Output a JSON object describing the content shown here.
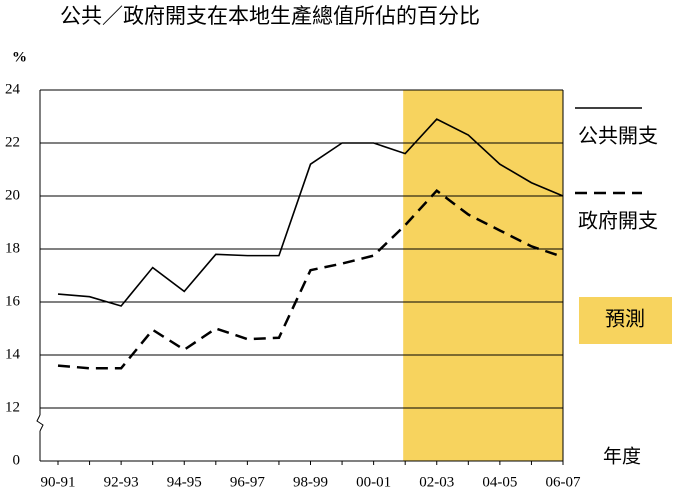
{
  "chart_data": {
    "type": "line",
    "title": "公共／政府開支在本地生產總值所佔的百分比",
    "y_label": "%",
    "x_label": "年度",
    "categories": [
      "90-91",
      null,
      "92-93",
      null,
      "94-95",
      null,
      "96-97",
      null,
      "98-99",
      null,
      "00-01",
      null,
      "02-03",
      null,
      "04-05",
      null,
      "06-07"
    ],
    "series": [
      {
        "name": "公共開支",
        "color": "#000000",
        "dash": false,
        "values": [
          16.3,
          16.2,
          15.85,
          17.3,
          16.4,
          17.8,
          17.75,
          17.75,
          21.2,
          22.0,
          22.0,
          21.6,
          22.9,
          22.3,
          21.2,
          20.5,
          20.0
        ]
      },
      {
        "name": "政府開支",
        "color": "#000000",
        "dash": true,
        "values": [
          13.6,
          13.5,
          13.5,
          14.95,
          14.2,
          15.0,
          14.6,
          14.65,
          17.2,
          17.45,
          17.75,
          18.9,
          20.2,
          19.3,
          18.7,
          18.1,
          17.7
        ]
      }
    ],
    "forecast": {
      "label": "預測",
      "color": "#f7d35e",
      "start_index": 11
    },
    "ylim": [
      0,
      24
    ],
    "axis_break": [
      0,
      12
    ],
    "yticks": [
      0,
      12,
      14,
      16,
      18,
      20,
      22,
      24
    ],
    "grid": true
  }
}
